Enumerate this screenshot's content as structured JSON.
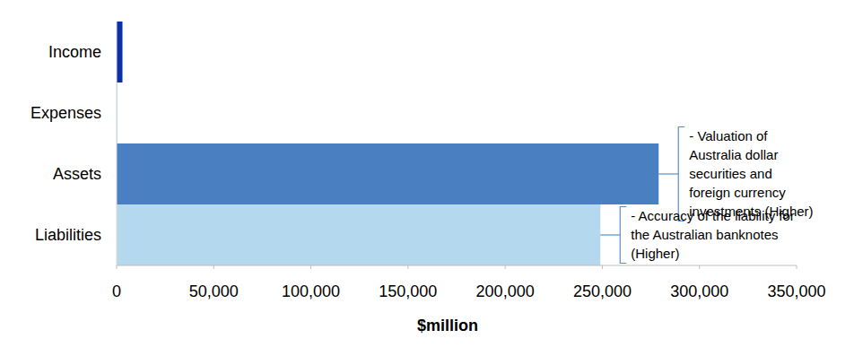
{
  "chart_data": {
    "type": "bar",
    "orientation": "horizontal",
    "categories": [
      "Income",
      "Expenses",
      "Assets",
      "Liabilities"
    ],
    "values": [
      3000,
      500,
      279000,
      249000
    ],
    "colors": [
      "#0b2fa6",
      "#b4d8ee",
      "#4a7fc1",
      "#b4d8ee"
    ],
    "xlim": [
      0,
      350000
    ],
    "xticks": [
      0,
      {
        "value": 50000,
        "label": "50,000"
      },
      {
        "value": 100000,
        "label": "100,000"
      },
      {
        "value": 150000,
        "label": "150,000"
      },
      {
        "value": 200000,
        "label": "200,000"
      },
      {
        "value": 250000,
        "label": "250,000"
      },
      {
        "value": 300000,
        "label": "300,000"
      },
      {
        "value": 350000,
        "label": "350,000"
      }
    ],
    "x_label": "$million",
    "grid": false,
    "annotations": [
      {
        "category": "Assets",
        "text": [
          "- Valuation of",
          "Australia dollar",
          "securities and",
          "foreign currency",
          "investments (Higher)"
        ]
      },
      {
        "category": "Liabilities",
        "text": [
          "- Accuracy of the liability for",
          "the Australian banknotes",
          "(Higher)"
        ]
      }
    ]
  }
}
